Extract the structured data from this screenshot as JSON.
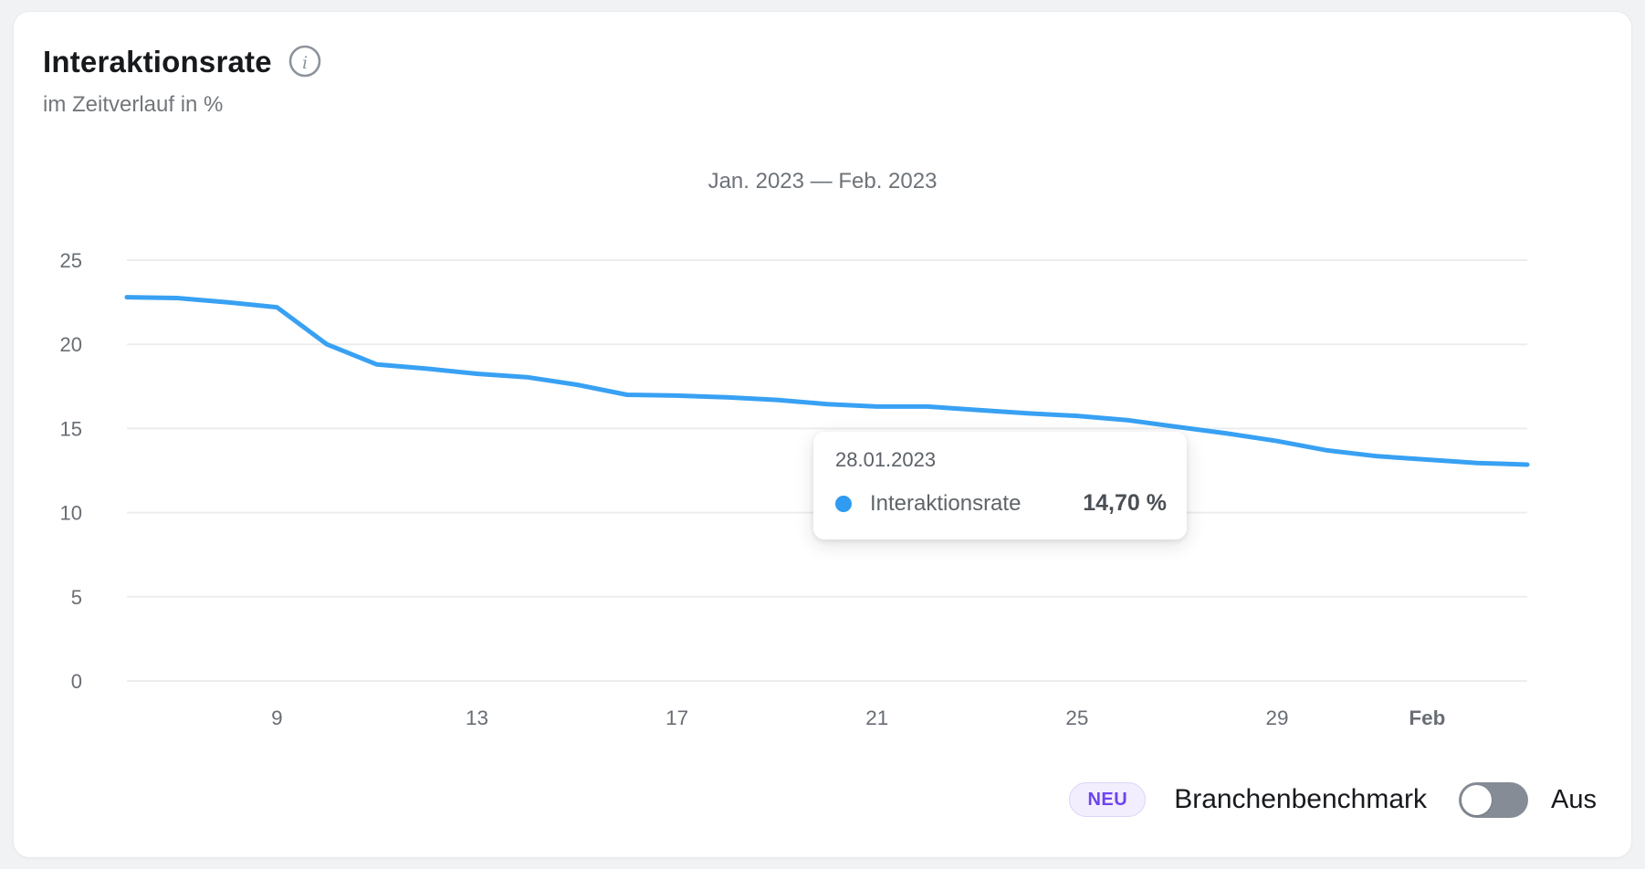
{
  "card": {
    "title": "Interaktionsrate",
    "subtitle": "im Zeitverlauf in %"
  },
  "chart_data": {
    "type": "line",
    "title": "Jan. 2023 — Feb. 2023",
    "series_name": "Interaktionsrate",
    "line_color": "#38a1f3",
    "grid_color": "#ecedef",
    "tick_color": "#686d74",
    "grid": "horizontal",
    "ylim": [
      0,
      25
    ],
    "yticks": [
      25,
      20,
      15,
      10,
      5,
      0
    ],
    "xticks": [
      {
        "label": "9",
        "index": 3,
        "bold": false
      },
      {
        "label": "13",
        "index": 7,
        "bold": false
      },
      {
        "label": "17",
        "index": 11,
        "bold": false
      },
      {
        "label": "21",
        "index": 15,
        "bold": false
      },
      {
        "label": "25",
        "index": 19,
        "bold": false
      },
      {
        "label": "29",
        "index": 23,
        "bold": false
      },
      {
        "label": "Feb",
        "index": 26,
        "bold": true
      }
    ],
    "x_dates": [
      "06.01.2023",
      "07.01.2023",
      "08.01.2023",
      "09.01.2023",
      "10.01.2023",
      "11.01.2023",
      "12.01.2023",
      "13.01.2023",
      "14.01.2023",
      "15.01.2023",
      "16.01.2023",
      "17.01.2023",
      "18.01.2023",
      "19.01.2023",
      "20.01.2023",
      "21.01.2023",
      "22.01.2023",
      "23.01.2023",
      "24.01.2023",
      "25.01.2023",
      "26.01.2023",
      "27.01.2023",
      "28.01.2023",
      "29.01.2023",
      "30.01.2023",
      "31.01.2023",
      "01.02.2023",
      "02.02.2023",
      "03.02.2023"
    ],
    "values": [
      22.8,
      22.75,
      22.5,
      22.2,
      20.0,
      18.8,
      18.55,
      18.25,
      18.05,
      17.6,
      17.0,
      16.95,
      16.85,
      16.7,
      16.45,
      16.3,
      16.3,
      16.1,
      15.9,
      15.75,
      15.5,
      15.1,
      14.7,
      14.25,
      13.7,
      13.35,
      13.15,
      12.95,
      12.85
    ]
  },
  "tooltip": {
    "date": "28.01.2023",
    "series": "Interaktionsrate",
    "value": "14,70 %",
    "dot_color": "#2f9bf1"
  },
  "benchmark": {
    "badge": "NEU",
    "badge_text_color": "#6d44f0",
    "badge_bg": "#f2eefd",
    "badge_border": "#ddd3f8",
    "label": "Branchenbenchmark",
    "toggle_state": "Aus",
    "toggle_track_color": "#868c95"
  }
}
